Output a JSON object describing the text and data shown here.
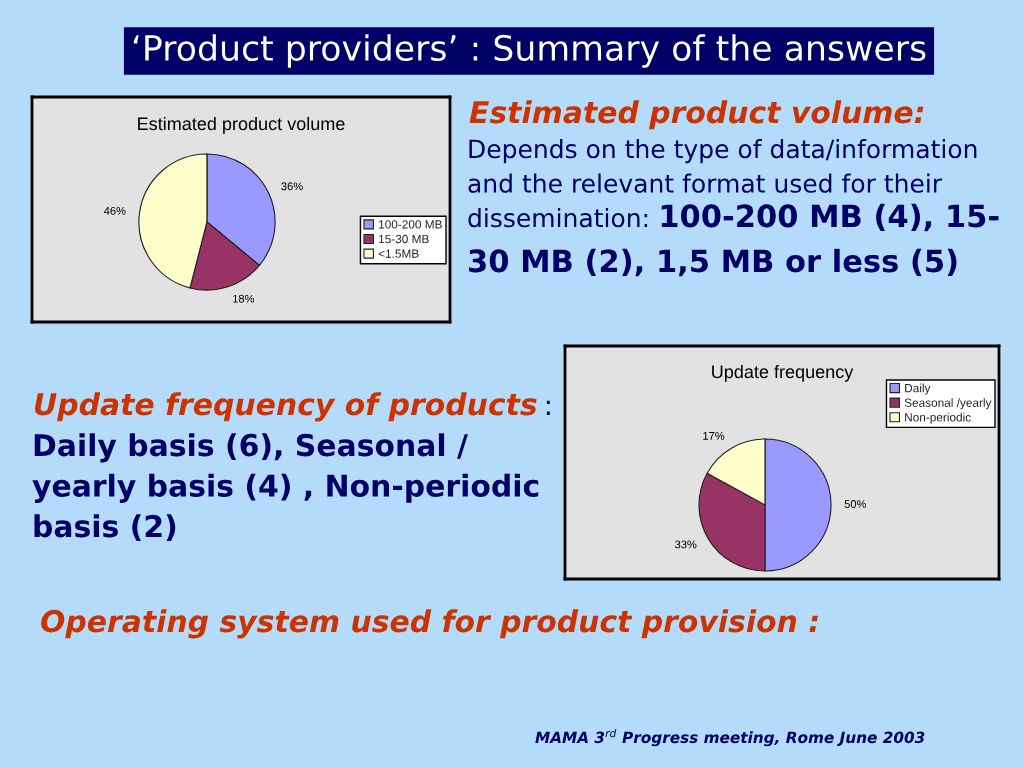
{
  "chart_data": [
    {
      "type": "other",
      "title": "‘Product providers’ : Summary of the answers",
      "annotations": [
        "Estimated product volume:",
        "Depends on the type of data/information\nand the relevant format used for their",
        "dissemination:",
        "100-200 MB (4), 15-",
        "30 MB (2), 1,5 MB or less (5)",
        "Update frequency of products",
        ":",
        "Daily basis (6), Seasonal /\nyearly basis (4) , Non-periodic\nbasis (2)",
        "Operating system used for product provision :",
        "MAMA 3$^{rd}$ Progress meeting, Rome June 2003"
      ]
    },
    {
      "type": "pie",
      "title": "Estimated product volume",
      "categories": [
        "100-200 MB",
        "15-30 MB",
        "<1.5MB"
      ],
      "values": [
        36,
        18,
        46
      ],
      "colors": [
        "#9999ff",
        "#993366",
        "#ffffcc"
      ],
      "value_labels": [
        "36%",
        "18%",
        "46%"
      ],
      "legend": "right"
    },
    {
      "type": "pie",
      "title": "Update frequency",
      "categories": [
        "Daily",
        "Seasonal /yearly",
        "Non-periodic"
      ],
      "values": [
        50,
        33,
        17
      ],
      "colors": [
        "#9999ff",
        "#993366",
        "#ffffcc"
      ],
      "value_labels": [
        "50%",
        "33%",
        "17%"
      ],
      "legend": "top right"
    }
  ]
}
